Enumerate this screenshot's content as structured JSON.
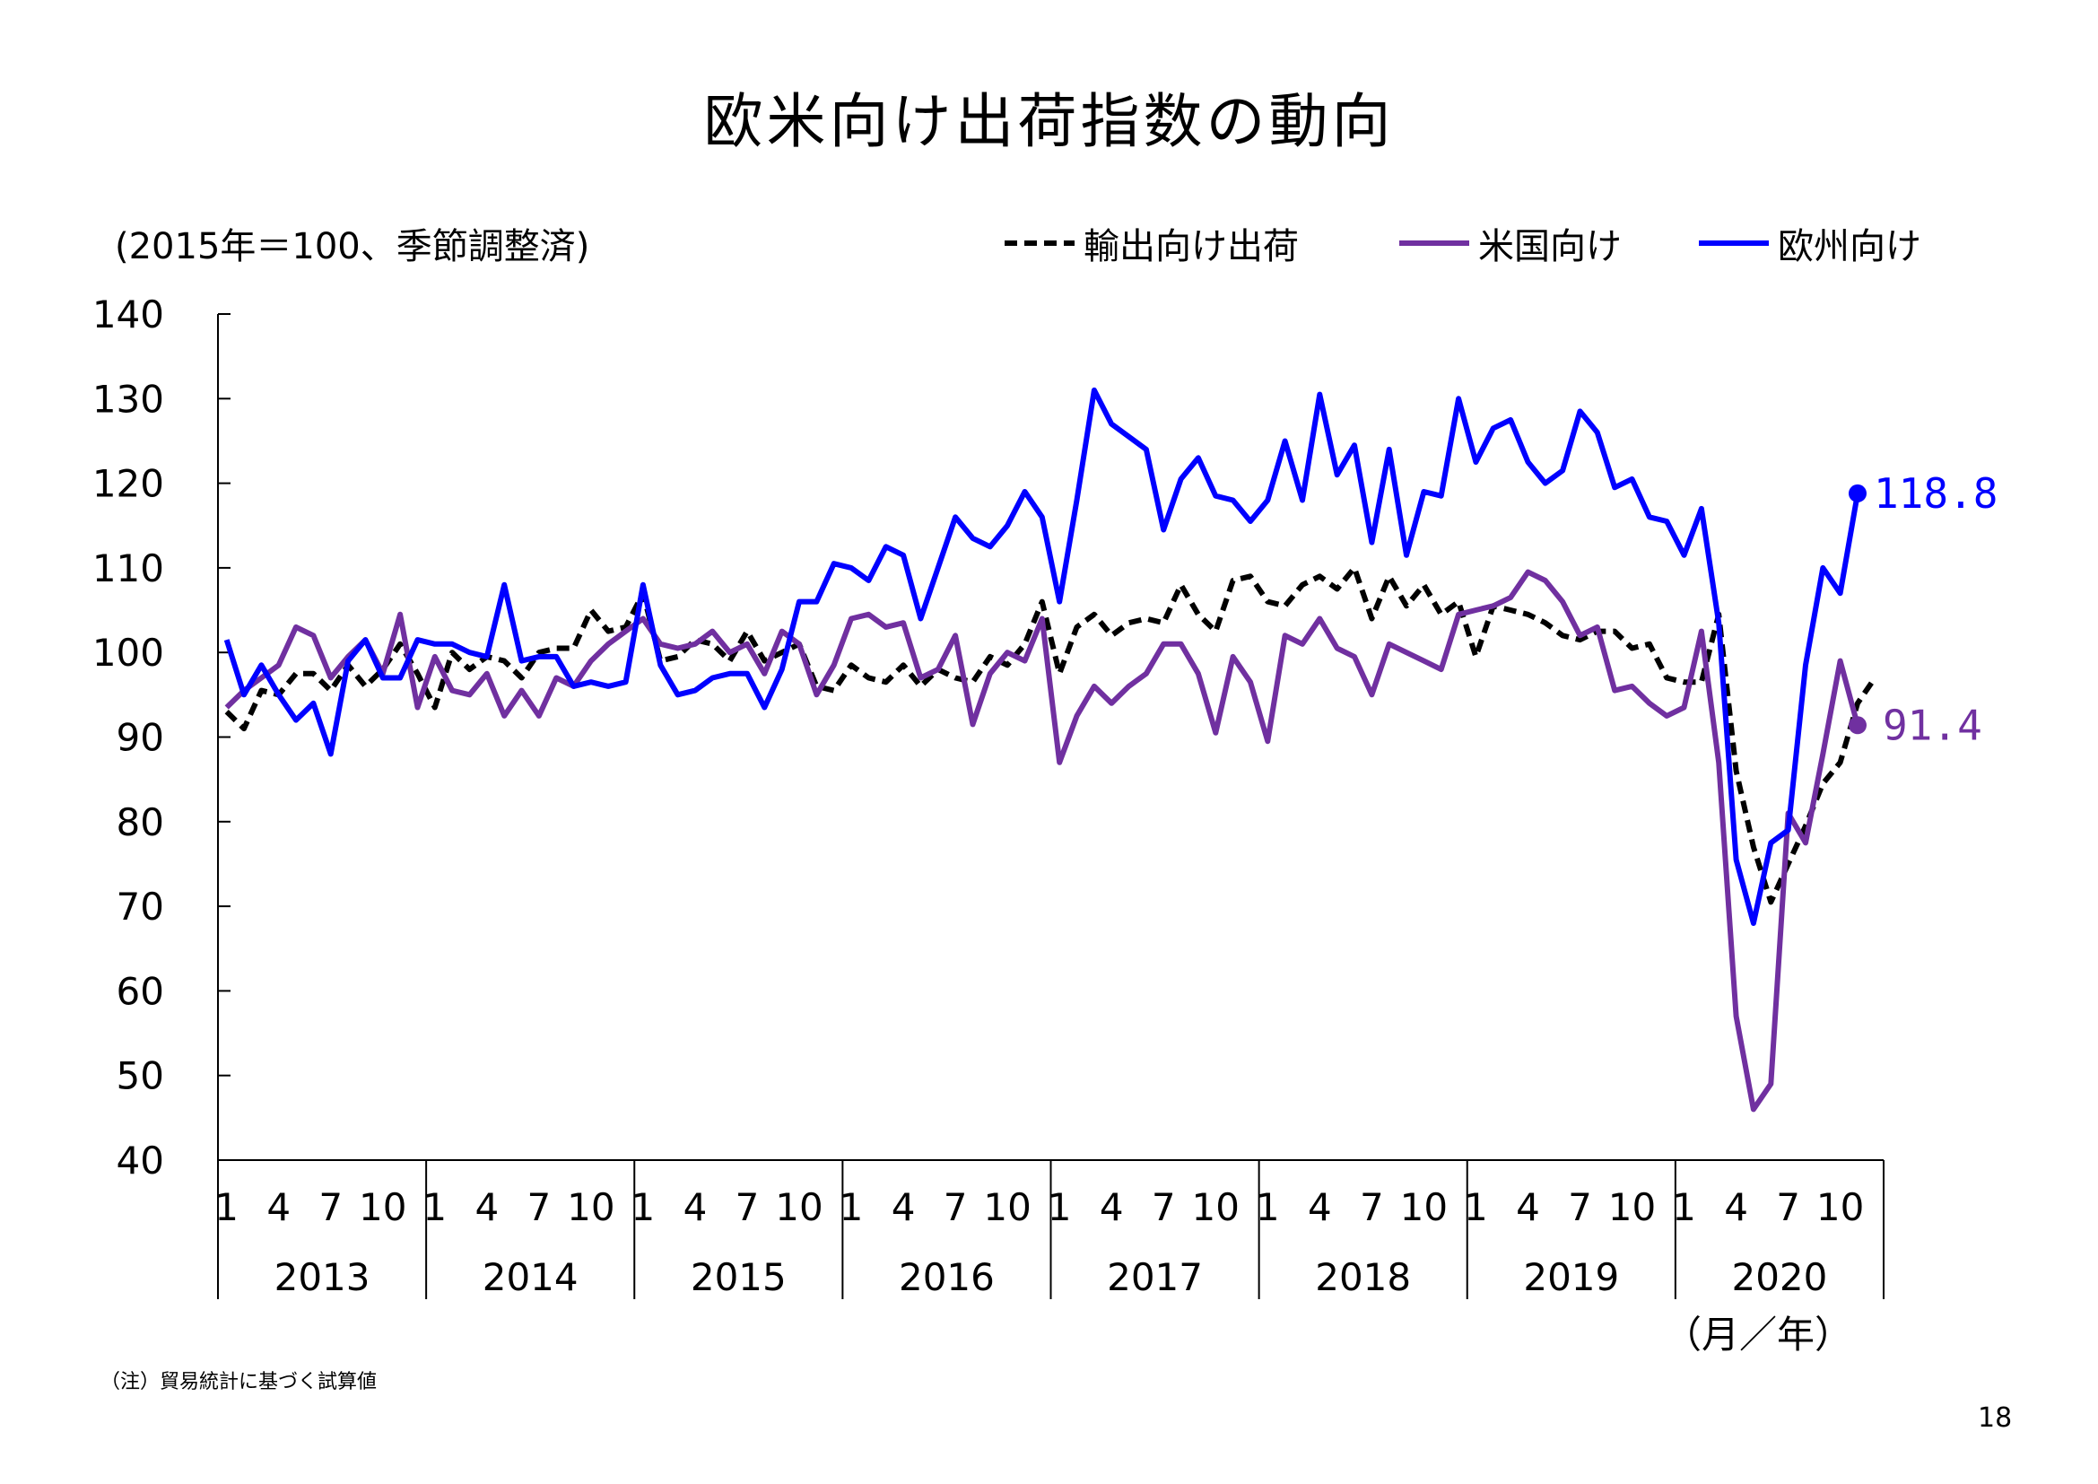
{
  "title": "欧米向け出荷指数の動向",
  "unit_note": "(2015年＝100、季節調整済)",
  "x_unit_label": "（月／年）",
  "footnote": "（注）貿易統計に基づく試算値",
  "page_number": "18",
  "colors": {
    "export": "#000000",
    "us": "#7030A0",
    "eu": "#0000FF"
  },
  "chart_data": {
    "type": "line",
    "title": "欧米向け出荷指数の動向",
    "ylim": [
      40,
      140
    ],
    "yticks": [
      40,
      50,
      60,
      70,
      80,
      90,
      100,
      110,
      120,
      130,
      140
    ],
    "month_ticks": [
      "1",
      "4",
      "7",
      "10"
    ],
    "years": [
      "2013",
      "2014",
      "2015",
      "2016",
      "2017",
      "2018",
      "2019",
      "2020"
    ],
    "x_start": "2013-01",
    "series": [
      {
        "name": "輸出向け出荷",
        "color": "#000000",
        "dash": true,
        "values": [
          93.0,
          91.0,
          95.5,
          95.0,
          97.5,
          97.5,
          95.5,
          98.5,
          96.0,
          98.0,
          101.0,
          97.5,
          93.5,
          100.0,
          98.0,
          99.5,
          99.0,
          97.0,
          100.0,
          100.5,
          100.5,
          105.0,
          102.5,
          103.0,
          107.0,
          99.0,
          99.5,
          101.5,
          101.0,
          99.0,
          102.5,
          99.0,
          100.0,
          101.0,
          96.0,
          95.5,
          98.5,
          97.0,
          96.5,
          98.5,
          96.0,
          98.0,
          97.0,
          96.5,
          99.5,
          98.5,
          101.0,
          106.0,
          97.5,
          103.0,
          104.5,
          102.0,
          103.5,
          104.0,
          103.5,
          108.0,
          104.5,
          102.5,
          108.5,
          109.0,
          106.0,
          105.5,
          108.0,
          109.0,
          107.5,
          110.0,
          104.0,
          109.0,
          105.5,
          108.0,
          104.5,
          106.0,
          99.5,
          105.5,
          105.0,
          104.5,
          103.5,
          102.0,
          101.5,
          102.5,
          102.5,
          100.5,
          101.0,
          97.0,
          96.5,
          96.5,
          104.5,
          86.0,
          77.0,
          70.5,
          75.0,
          79.5,
          84.5,
          87.0,
          94.0,
          97.0
        ]
      },
      {
        "name": "米国向け",
        "color": "#7030A0",
        "dash": false,
        "values": [
          93.5,
          95.5,
          97.0,
          98.5,
          103.0,
          102.0,
          97.0,
          99.5,
          101.5,
          97.5,
          104.5,
          93.5,
          99.5,
          95.5,
          95.0,
          97.5,
          92.5,
          95.5,
          92.5,
          97.0,
          96.0,
          99.0,
          101.0,
          102.5,
          104.0,
          101.0,
          100.5,
          101.0,
          102.5,
          100.0,
          101.0,
          97.5,
          102.5,
          101.0,
          95.0,
          98.5,
          104.0,
          104.5,
          103.0,
          103.5,
          97.0,
          98.0,
          102.0,
          91.5,
          97.5,
          100.0,
          99.0,
          104.0,
          87.0,
          92.5,
          96.0,
          94.0,
          96.0,
          97.5,
          101.0,
          101.0,
          97.5,
          90.5,
          99.5,
          96.5,
          89.5,
          102.0,
          101.0,
          104.0,
          100.5,
          99.5,
          95.0,
          101.0,
          100.0,
          99.0,
          98.0,
          104.5,
          105.0,
          105.5,
          106.5,
          109.5,
          108.5,
          106.0,
          102.0,
          103.0,
          95.5,
          96.0,
          94.0,
          92.5,
          93.5,
          102.5,
          87.0,
          57.0,
          46.0,
          49.0,
          81.0,
          77.5,
          88.0,
          99.0,
          91.4
        ]
      },
      {
        "name": "欧州向け",
        "color": "#0000FF",
        "dash": false,
        "values": [
          101.5,
          95.0,
          98.5,
          95.0,
          92.0,
          94.0,
          88.0,
          99.0,
          101.5,
          97.0,
          97.0,
          101.5,
          101.0,
          101.0,
          100.0,
          99.5,
          108.0,
          99.0,
          99.5,
          99.5,
          96.0,
          96.5,
          96.0,
          96.5,
          108.0,
          98.5,
          95.0,
          95.5,
          97.0,
          97.5,
          97.5,
          93.5,
          98.0,
          106.0,
          106.0,
          110.5,
          110.0,
          108.5,
          112.5,
          111.5,
          104.0,
          110.0,
          116.0,
          113.5,
          112.5,
          115.0,
          119.0,
          116.0,
          106.0,
          118.0,
          131.0,
          127.0,
          125.5,
          124.0,
          114.5,
          120.5,
          123.0,
          118.5,
          118.0,
          115.5,
          118.0,
          125.0,
          118.0,
          130.5,
          121.0,
          124.5,
          113.0,
          124.0,
          111.5,
          119.0,
          118.5,
          130.0,
          122.5,
          126.5,
          127.5,
          122.5,
          120.0,
          121.5,
          128.5,
          126.0,
          119.5,
          120.5,
          116.0,
          115.5,
          111.5,
          117.0,
          103.5,
          75.5,
          68.0,
          77.5,
          79.0,
          98.5,
          110.0,
          107.0,
          118.8
        ]
      }
    ],
    "end_labels": {
      "eu": "118.8",
      "us": "91.4"
    },
    "legend_position": "top-right"
  }
}
